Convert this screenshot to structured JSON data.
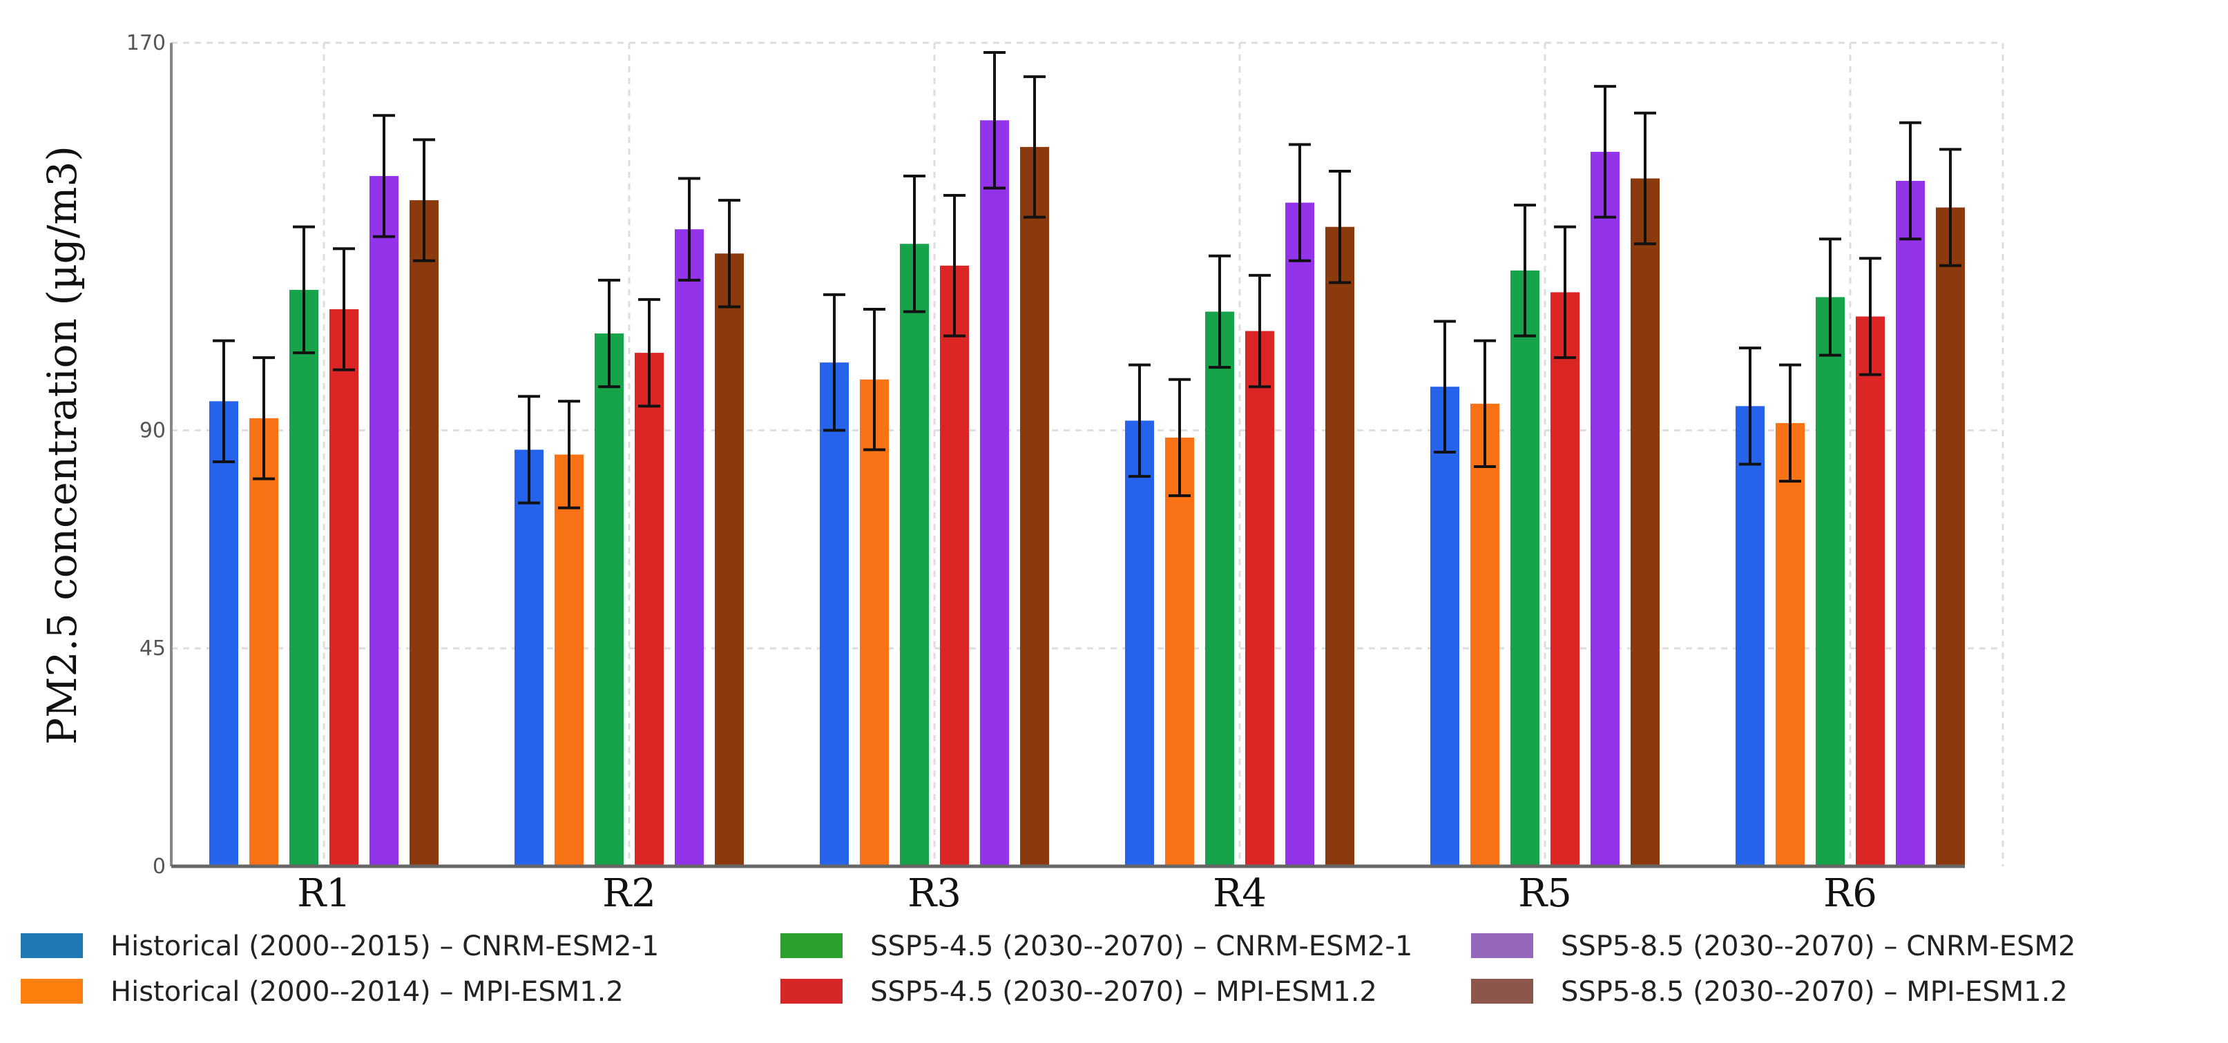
{
  "chart_data": {
    "type": "bar",
    "title": "",
    "xlabel": "",
    "ylabel": "PM2.5 concentration (µg/m3)",
    "ylim": [
      0,
      170
    ],
    "yticks": [
      0,
      45,
      90,
      170
    ],
    "grid": true,
    "legend_position": "bottom",
    "categories": [
      "R1",
      "R2",
      "R3",
      "R4",
      "R5",
      "R6"
    ],
    "series": [
      {
        "name": "Historical (2000--2015) – CNRM-ESM2-1",
        "color": "#2563eb",
        "legend_color": "#1f77b4",
        "values": [
          96,
          86,
          104,
          92,
          99,
          95
        ],
        "errors": [
          12.5,
          11,
          14,
          11.5,
          13.5,
          12
        ]
      },
      {
        "name": "Historical (2000--2014) – MPI-ESM1.2",
        "color": "#f97316",
        "legend_color": "#ff7f0e",
        "values": [
          92.5,
          85,
          100.5,
          88.5,
          95.5,
          91.5
        ],
        "errors": [
          12.5,
          11,
          14.5,
          12,
          13,
          12
        ]
      },
      {
        "name": "SSP5-4.5 (2030--2070) – CNRM-ESM2-1",
        "color": "#16a34a",
        "legend_color": "#2ca02c",
        "values": [
          119,
          110,
          128.5,
          114.5,
          123,
          117.5
        ],
        "errors": [
          13,
          11,
          14,
          11.5,
          13.5,
          12
        ]
      },
      {
        "name": "SSP5-4.5 (2030--2070) – MPI-ESM1.2",
        "color": "#dc2626",
        "legend_color": "#d62728",
        "values": [
          115,
          106,
          124,
          110.5,
          118.5,
          113.5
        ],
        "errors": [
          12.5,
          11,
          14.5,
          11.5,
          13.5,
          12
        ]
      },
      {
        "name": "SSP5-8.5 (2030--2070) – CNRM-ESM2",
        "color": "#9333ea",
        "legend_color": "#9467bd",
        "values": [
          142.5,
          131.5,
          154,
          137,
          147.5,
          141.5
        ],
        "errors": [
          12.5,
          10.5,
          14,
          12,
          13.5,
          12
        ]
      },
      {
        "name": "SSP5-8.5 (2030--2070) – MPI-ESM1.2",
        "color": "#8b3a0e",
        "legend_color": "#8c564b",
        "values": [
          137.5,
          126.5,
          148.5,
          132,
          142,
          136
        ],
        "errors": [
          12.5,
          11,
          14.5,
          11.5,
          13.5,
          12
        ]
      }
    ]
  }
}
